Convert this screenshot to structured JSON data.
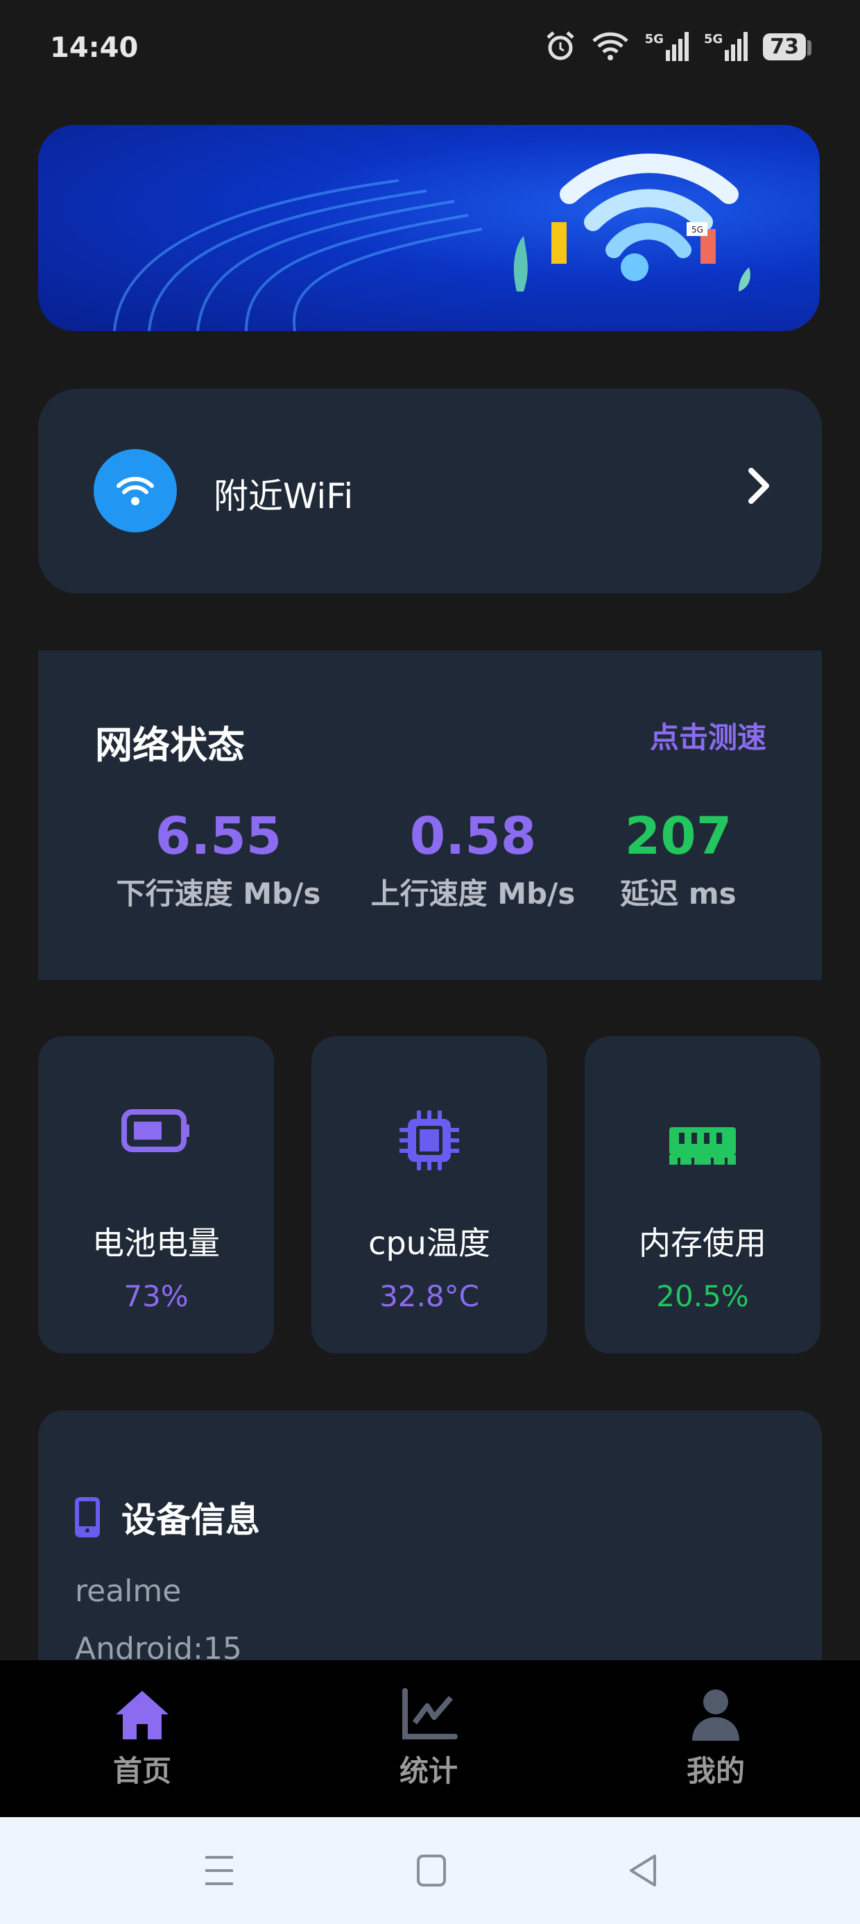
{
  "status_bar": {
    "time": "14:40",
    "battery": "73",
    "network_labels": [
      "5G",
      "5G"
    ]
  },
  "banner": {
    "badge": "5G"
  },
  "wifi_entry": {
    "label": "附近WiFi",
    "icon": "wifi-icon"
  },
  "network_status": {
    "title": "网络状态",
    "test_button": "点击测速",
    "metrics": [
      {
        "value": "6.55",
        "label": "下行速度 Mb/s",
        "color": "#8b6cf0"
      },
      {
        "value": "0.58",
        "label": "上行速度 Mb/s",
        "color": "#8b6cf0"
      },
      {
        "value": "207",
        "label": "延迟 ms",
        "color": "#22c55e"
      }
    ]
  },
  "tiles": [
    {
      "label": "电池电量",
      "value": "73%",
      "icon": "battery-icon",
      "color": "#8b6cf0"
    },
    {
      "label": "cpu温度",
      "value": "32.8°C",
      "icon": "cpu-icon",
      "color": "#8b6cf0"
    },
    {
      "label": "内存使用",
      "value": "20.5%",
      "icon": "memory-icon",
      "color": "#22c55e"
    }
  ],
  "device_info": {
    "title": "设备信息",
    "lines": [
      "realme",
      "Android:15"
    ]
  },
  "tabbar": {
    "items": [
      {
        "label": "首页",
        "icon": "home-icon",
        "active": true
      },
      {
        "label": "统计",
        "icon": "chart-icon",
        "active": false
      },
      {
        "label": "我的",
        "icon": "user-icon",
        "active": false
      }
    ]
  }
}
